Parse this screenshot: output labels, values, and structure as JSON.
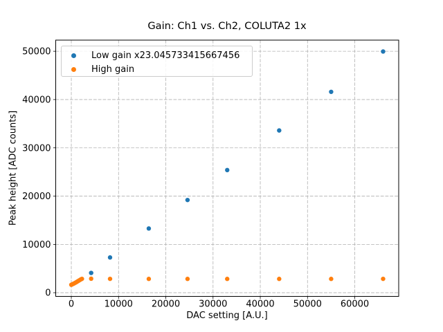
{
  "figure": {
    "background": "#ffffff"
  },
  "chart_data": {
    "type": "scatter",
    "title": "Gain: Ch1 vs. Ch2, COLUTA2 1x",
    "xlabel": "DAC setting [A.U.]",
    "ylabel": "Peak height [ADC counts]",
    "xlim": [
      -3300,
      69300
    ],
    "ylim": [
      -760,
      52310
    ],
    "xticks": [
      0,
      10000,
      20000,
      30000,
      40000,
      50000,
      60000
    ],
    "yticks": [
      0,
      10000,
      20000,
      30000,
      40000,
      50000
    ],
    "grid": true,
    "grid_style": "dashed",
    "legend_position": "upper left",
    "series": [
      {
        "name": "Low gain x23.045733415667456",
        "color": "#1f77b4",
        "marker": "circle",
        "x": [
          4200,
          8200,
          16400,
          24600,
          33000,
          44000,
          55000,
          66000
        ],
        "y": [
          4100,
          7300,
          13300,
          19200,
          25400,
          33600,
          41600,
          49950
        ]
      },
      {
        "name": "High gain",
        "color": "#ff7f0e",
        "marker": "circle",
        "x": [
          0,
          250,
          500,
          750,
          1000,
          1250,
          1500,
          1750,
          2000,
          2250,
          4200,
          8200,
          16400,
          24600,
          33000,
          44000,
          55000,
          66000
        ],
        "y": [
          1650,
          1760,
          1880,
          2010,
          2150,
          2300,
          2450,
          2600,
          2750,
          2870,
          2900,
          2870,
          2860,
          2860,
          2860,
          2860,
          2860,
          2870
        ]
      }
    ],
    "colors": {
      "grid": "#b0b0b0",
      "spine": "#000000",
      "text": "#000000"
    }
  }
}
